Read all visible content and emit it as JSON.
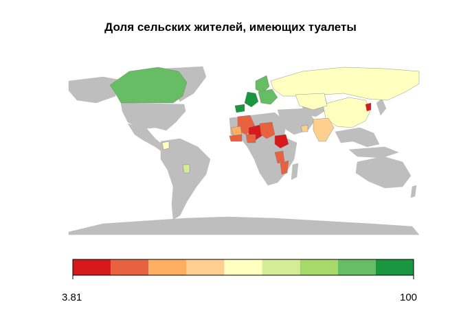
{
  "title": "Доля сельских жителей, имеющих туалеты",
  "legend": {
    "min_label": "3.81",
    "max_label": "100",
    "min": 3.81,
    "max": 100,
    "bins": 9,
    "colors": [
      "#d7191c",
      "#e9623f",
      "#fdae61",
      "#fecf8f",
      "#ffffbf",
      "#d3ec95",
      "#a6d96a",
      "#66bd63",
      "#1a9641"
    ]
  },
  "colors": {
    "no_data": "#bebebe",
    "ocean": "#ffffff",
    "border": "#000000"
  },
  "regions": [
    {
      "name": "Canada",
      "bin": 7
    },
    {
      "name": "Russia",
      "bin": 4
    },
    {
      "name": "China",
      "bin": 4
    },
    {
      "name": "Kazakhstan",
      "bin": 4
    },
    {
      "name": "Scandinavia",
      "bin": 7
    },
    {
      "name": "Western Europe",
      "bin": 8
    },
    {
      "name": "Eastern Europe",
      "bin": 7
    },
    {
      "name": "Spain",
      "bin": 8
    },
    {
      "name": "North Korea",
      "bin": 0
    },
    {
      "name": "India",
      "bin": 3
    },
    {
      "name": "Niger",
      "bin": 1
    },
    {
      "name": "Chad",
      "bin": 0
    },
    {
      "name": "Ethiopia",
      "bin": 0
    },
    {
      "name": "Sudan",
      "bin": 1
    },
    {
      "name": "Mali",
      "bin": 2
    },
    {
      "name": "West Africa",
      "bin": 1
    },
    {
      "name": "Tanzania",
      "bin": 1
    },
    {
      "name": "Mozambique",
      "bin": 1
    },
    {
      "name": "Nigeria",
      "bin": 1
    },
    {
      "name": "Yemen",
      "bin": 3
    },
    {
      "name": "Colombia",
      "bin": 4
    },
    {
      "name": "Paraguay",
      "bin": 5
    }
  ]
}
